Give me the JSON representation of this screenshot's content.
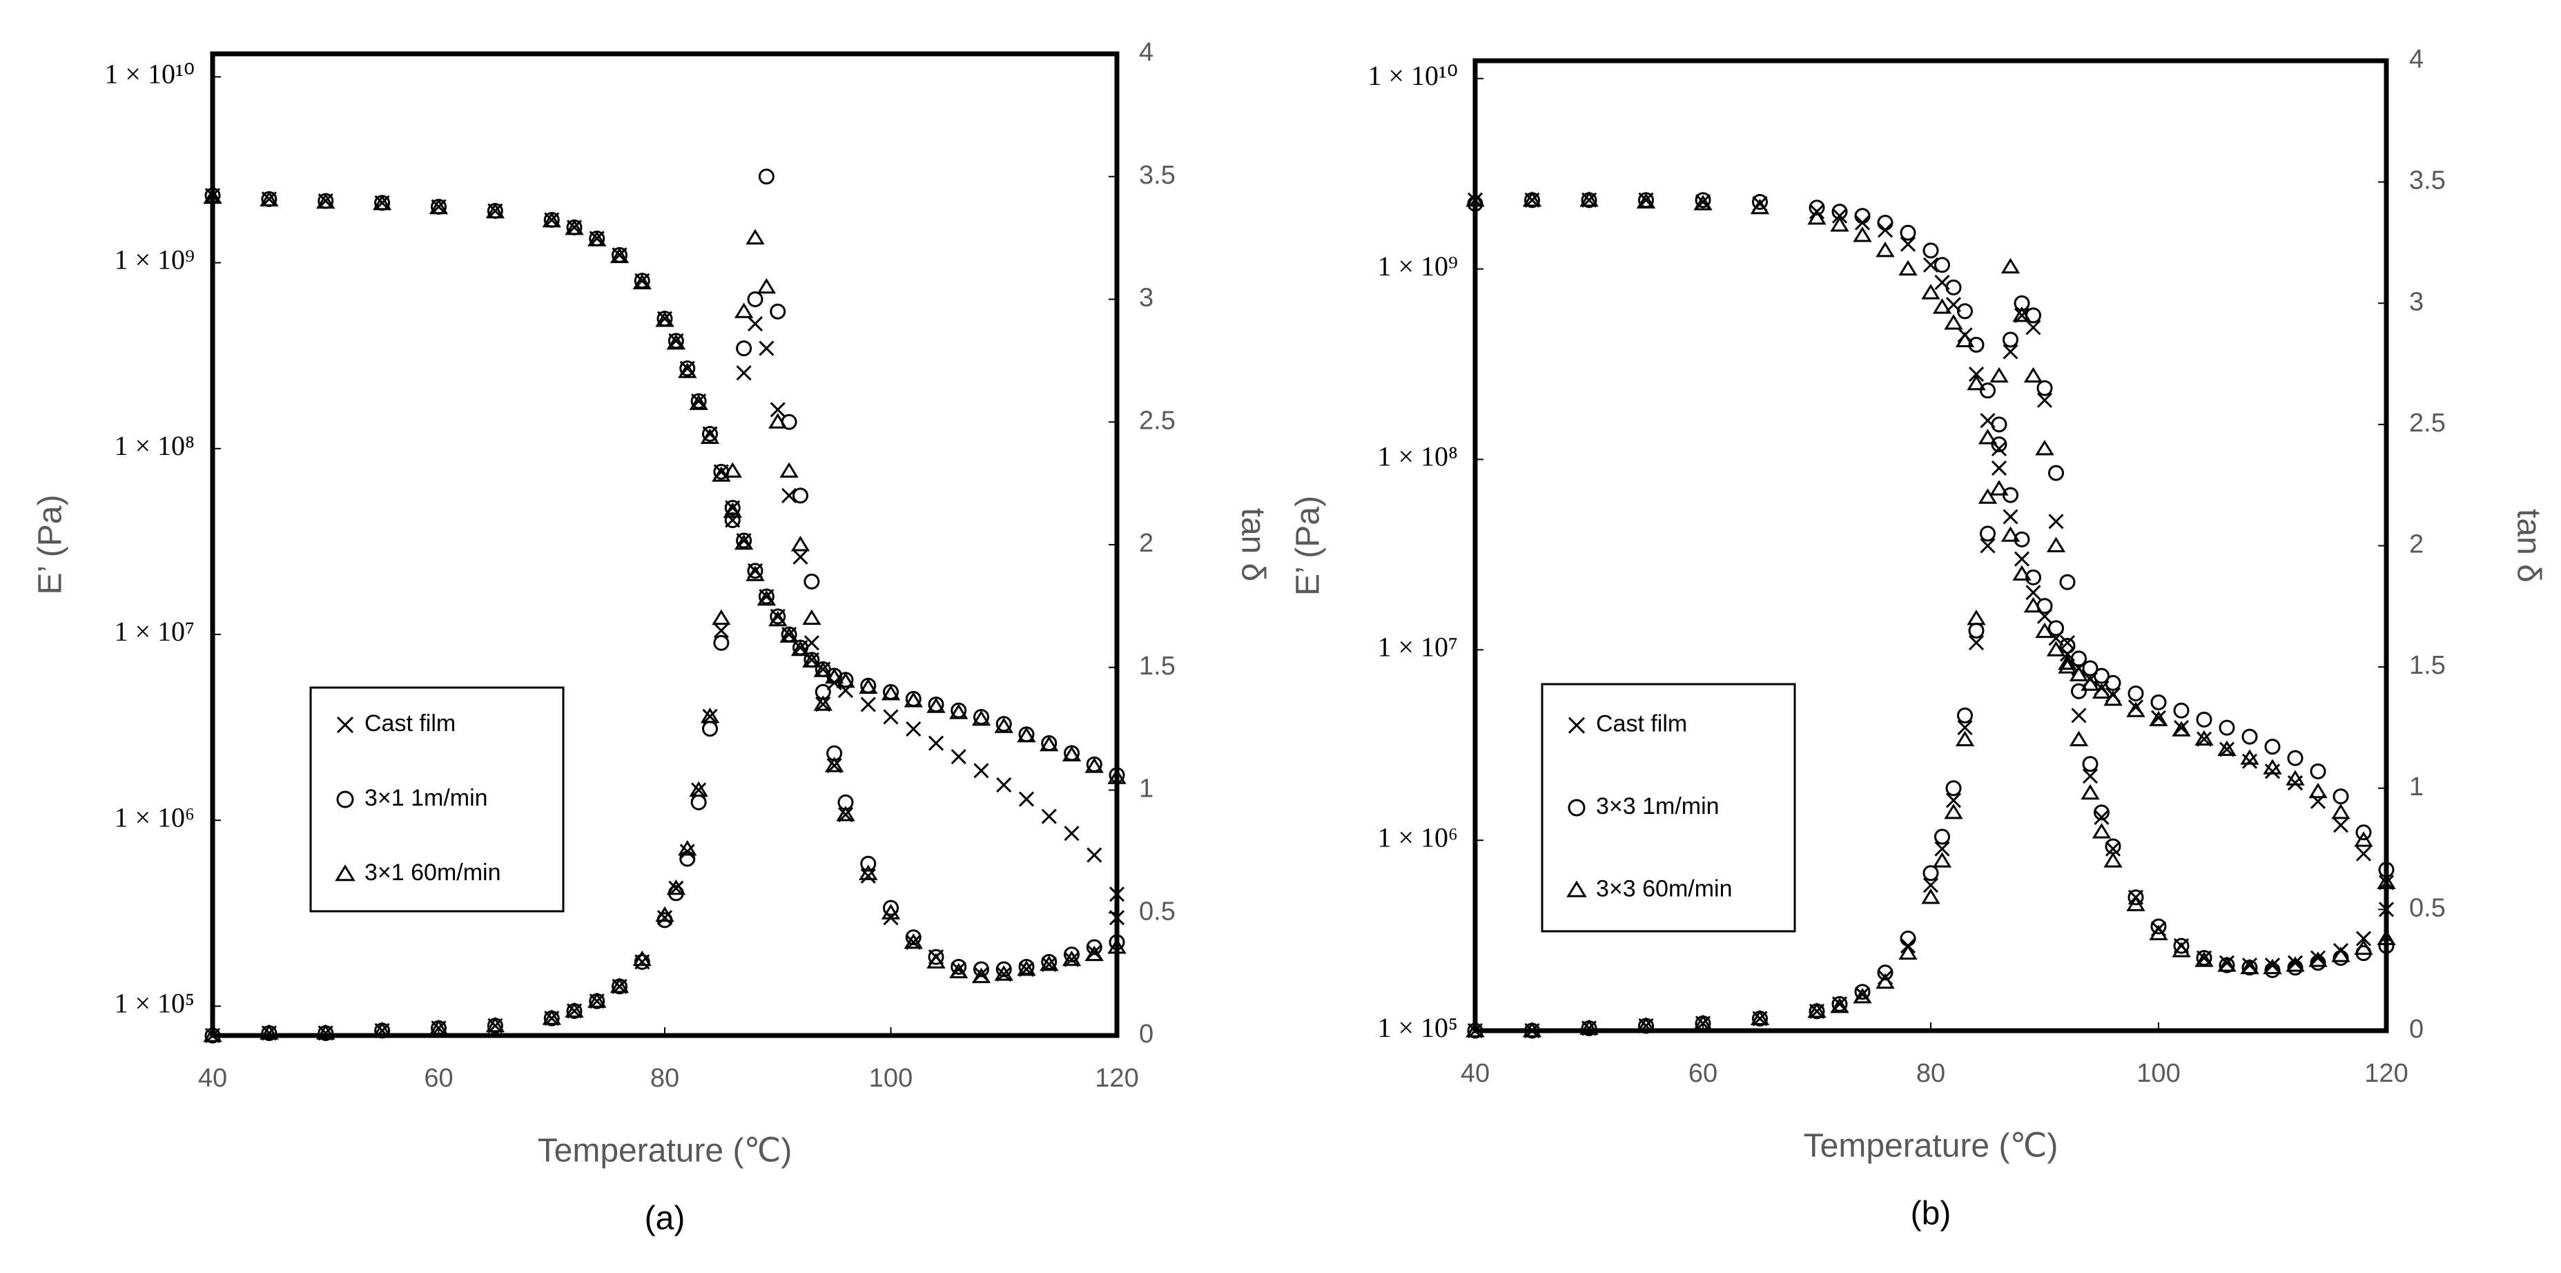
{
  "chart_data": [
    {
      "type": "scatter",
      "subtitle": "(a)",
      "x_label": "Temperature (℃)",
      "y_label": "E’ (Pa)",
      "y2_label": "tan δ",
      "log_y": true,
      "ylim": [
        69500,
        13300000000
      ],
      "y2lim": [
        0,
        4
      ],
      "xlim": [
        40,
        120
      ],
      "xticks": [
        40,
        60,
        80,
        100,
        120
      ],
      "yticks": [
        {
          "value": 100000,
          "label": "1 × 10⁵"
        },
        {
          "value": 1000000,
          "label": "1 × 10⁶"
        },
        {
          "value": 10000000,
          "label": "1 × 10⁷"
        },
        {
          "value": 100000000,
          "label": "1 × 10⁸"
        },
        {
          "value": 1000000000,
          "label": "1 × 10⁹"
        },
        {
          "value": 10000000000,
          "label": "1 × 10¹⁰"
        }
      ],
      "y2ticks": [
        0,
        0.5,
        1,
        1.5,
        2,
        2.5,
        3,
        3.5,
        4
      ],
      "x": [
        40,
        45,
        50,
        55,
        60,
        65,
        70,
        72,
        74,
        76,
        78,
        80,
        81,
        82,
        83,
        84,
        85,
        86,
        87,
        88,
        89,
        90,
        91,
        92,
        93,
        94,
        95,
        96,
        98,
        100,
        102,
        104,
        106,
        108,
        110,
        112,
        114,
        116,
        118,
        120
      ],
      "series": [
        {
          "name": "Cast film",
          "marker": "x",
          "color": "#000000",
          "values": [
            2300000000,
            2200000000,
            2150000000,
            2100000000,
            2000000000,
            1900000000,
            1700000000,
            1550000000,
            1350000000,
            1100000000,
            800000000,
            500000000,
            380000000,
            270000000,
            180000000,
            120000000,
            75000000,
            48000000,
            32000000,
            22000000,
            16000000,
            12500000,
            10000000,
            8500000,
            7300000,
            6500000,
            5500000,
            5000000,
            4200000,
            3600000,
            3100000,
            2600000,
            2200000,
            1850000,
            1550000,
            1300000,
            1050000,
            850000,
            650000,
            400000
          ],
          "y2_values": [
            0.0,
            0.01,
            0.01,
            0.02,
            0.03,
            0.04,
            0.07,
            0.1,
            0.14,
            0.2,
            0.3,
            0.48,
            0.6,
            0.75,
            1.0,
            1.3,
            1.65,
            2.1,
            2.7,
            2.9,
            2.8,
            2.55,
            2.2,
            1.95,
            1.6,
            1.35,
            1.1,
            0.9,
            0.65,
            0.48,
            0.38,
            0.32,
            0.27,
            0.25,
            0.25,
            0.27,
            0.29,
            0.31,
            0.34,
            0.48
          ]
        },
        {
          "name": "3×1 1m/min",
          "marker": "circle",
          "color": "#000000",
          "values": [
            2300000000,
            2200000000,
            2150000000,
            2100000000,
            2000000000,
            1900000000,
            1700000000,
            1550000000,
            1350000000,
            1100000000,
            800000000,
            500000000,
            380000000,
            270000000,
            180000000,
            120000000,
            75000000,
            48000000,
            32000000,
            22000000,
            16000000,
            12500000,
            10000000,
            8500000,
            7300000,
            6500000,
            6000000,
            5700000,
            5300000,
            4900000,
            4500000,
            4200000,
            3900000,
            3600000,
            3300000,
            2900000,
            2600000,
            2300000,
            2000000,
            1750000
          ],
          "y2_values": [
            0.0,
            0.01,
            0.01,
            0.02,
            0.03,
            0.04,
            0.07,
            0.1,
            0.14,
            0.2,
            0.3,
            0.47,
            0.58,
            0.72,
            0.95,
            1.25,
            1.6,
            2.1,
            2.8,
            3.0,
            3.5,
            2.95,
            2.5,
            2.2,
            1.85,
            1.4,
            1.15,
            0.95,
            0.7,
            0.52,
            0.4,
            0.32,
            0.28,
            0.27,
            0.27,
            0.28,
            0.3,
            0.33,
            0.36,
            0.38
          ]
        },
        {
          "name": "3×1 60m/min",
          "marker": "triangle",
          "color": "#000000",
          "values": [
            2250000000,
            2180000000,
            2120000000,
            2080000000,
            1980000000,
            1880000000,
            1680000000,
            1530000000,
            1330000000,
            1080000000,
            780000000,
            490000000,
            370000000,
            260000000,
            175000000,
            115000000,
            72000000,
            46000000,
            31000000,
            21000000,
            15500000,
            12000000,
            9800000,
            8300000,
            7200000,
            6400000,
            5900000,
            5600000,
            5200000,
            4800000,
            4400000,
            4100000,
            3800000,
            3500000,
            3200000,
            2850000,
            2550000,
            2250000,
            1950000,
            1700000
          ],
          "y2_values": [
            0.0,
            0.01,
            0.01,
            0.02,
            0.03,
            0.04,
            0.07,
            0.1,
            0.14,
            0.2,
            0.31,
            0.49,
            0.6,
            0.76,
            1.0,
            1.3,
            1.7,
            2.3,
            2.95,
            3.25,
            3.05,
            2.5,
            2.3,
            2.0,
            1.7,
            1.35,
            1.1,
            0.9,
            0.66,
            0.5,
            0.38,
            0.3,
            0.26,
            0.24,
            0.25,
            0.27,
            0.29,
            0.31,
            0.33,
            0.36
          ]
        }
      ]
    },
    {
      "type": "scatter",
      "subtitle": "(b)",
      "x_label": "Temperature (℃)",
      "y_label": "E’ (Pa)",
      "y2_label": "tan δ",
      "log_y": true,
      "ylim": [
        100000,
        12400000000
      ],
      "y2lim": [
        0,
        4
      ],
      "xlim": [
        40,
        120
      ],
      "xticks": [
        40,
        60,
        80,
        100,
        120
      ],
      "yticks": [
        {
          "value": 100000,
          "label": "1 × 10⁵"
        },
        {
          "value": 1000000,
          "label": "1 × 10⁶"
        },
        {
          "value": 10000000,
          "label": "1 × 10⁷"
        },
        {
          "value": 100000000,
          "label": "1 × 10⁸"
        },
        {
          "value": 1000000000,
          "label": "1 × 10⁹"
        },
        {
          "value": 10000000000,
          "label": "1 × 10¹⁰"
        }
      ],
      "y2ticks": [
        0,
        0.5,
        1,
        1.5,
        2,
        2.5,
        3,
        3.5,
        4
      ],
      "x": [
        40,
        45,
        50,
        55,
        60,
        65,
        70,
        72,
        74,
        76,
        78,
        80,
        81,
        82,
        83,
        84,
        85,
        86,
        87,
        88,
        89,
        90,
        91,
        92,
        93,
        94,
        95,
        96,
        98,
        100,
        102,
        104,
        106,
        108,
        110,
        112,
        114,
        116,
        118,
        120
      ],
      "series": [
        {
          "name": "Cast film",
          "marker": "x",
          "color": "#000000",
          "values": [
            2300000000,
            2300000000,
            2300000000,
            2300000000,
            2250000000,
            2200000000,
            2000000000,
            1900000000,
            1750000000,
            1600000000,
            1350000000,
            1050000000,
            850000000,
            650000000,
            450000000,
            280000000,
            160000000,
            90000000,
            50000000,
            30000000,
            20000000,
            15000000,
            11500000,
            9500000,
            8000000,
            7000000,
            6300000,
            5800000,
            5000000,
            4400000,
            3900000,
            3400000,
            3000000,
            2600000,
            2300000,
            2000000,
            1600000,
            1200000,
            850000,
            600000
          ],
          "y2_values": [
            0.0,
            0.0,
            0.01,
            0.02,
            0.03,
            0.05,
            0.08,
            0.11,
            0.15,
            0.22,
            0.35,
            0.6,
            0.75,
            0.95,
            1.25,
            1.6,
            2.0,
            2.4,
            2.8,
            2.95,
            2.9,
            2.6,
            2.1,
            1.6,
            1.3,
            1.05,
            0.88,
            0.75,
            0.55,
            0.42,
            0.35,
            0.3,
            0.28,
            0.27,
            0.27,
            0.28,
            0.3,
            0.33,
            0.38,
            0.5
          ]
        },
        {
          "name": "3×3 1m/min",
          "marker": "circle",
          "color": "#000000",
          "values": [
            2200000000,
            2300000000,
            2300000000,
            2300000000,
            2300000000,
            2250000000,
            2100000000,
            2000000000,
            1900000000,
            1750000000,
            1550000000,
            1250000000,
            1050000000,
            800000000,
            600000000,
            400000000,
            230000000,
            120000000,
            65000000,
            38000000,
            24000000,
            17000000,
            13000000,
            10500000,
            9000000,
            8000000,
            7300000,
            6700000,
            5900000,
            5300000,
            4800000,
            4300000,
            3900000,
            3500000,
            3100000,
            2700000,
            2300000,
            1700000,
            1100000,
            700000
          ],
          "y2_values": [
            0.0,
            0.0,
            0.01,
            0.02,
            0.03,
            0.05,
            0.08,
            0.11,
            0.16,
            0.24,
            0.38,
            0.65,
            0.8,
            1.0,
            1.3,
            1.65,
            2.05,
            2.5,
            2.85,
            3.0,
            2.95,
            2.65,
            2.3,
            1.85,
            1.4,
            1.1,
            0.9,
            0.76,
            0.55,
            0.43,
            0.35,
            0.3,
            0.27,
            0.26,
            0.25,
            0.26,
            0.28,
            0.3,
            0.32,
            0.35
          ]
        },
        {
          "name": "3×3 60m/min",
          "marker": "triangle",
          "color": "#000000",
          "values": [
            2300000000,
            2300000000,
            2300000000,
            2250000000,
            2200000000,
            2100000000,
            1850000000,
            1700000000,
            1500000000,
            1250000000,
            1000000000,
            750000000,
            630000000,
            520000000,
            420000000,
            250000000,
            130000000,
            70000000,
            40000000,
            25000000,
            17000000,
            12500000,
            10000000,
            8500000,
            7400000,
            6600000,
            6000000,
            5500000,
            4800000,
            4300000,
            3800000,
            3400000,
            3000000,
            2700000,
            2400000,
            2100000,
            1800000,
            1400000,
            1000000,
            600000
          ],
          "y2_values": [
            0.0,
            0.0,
            0.01,
            0.02,
            0.03,
            0.05,
            0.08,
            0.1,
            0.14,
            0.2,
            0.32,
            0.55,
            0.7,
            0.9,
            1.2,
            1.7,
            2.2,
            2.7,
            3.15,
            2.95,
            2.7,
            2.4,
            2.0,
            1.5,
            1.2,
            0.98,
            0.82,
            0.7,
            0.52,
            0.4,
            0.33,
            0.29,
            0.27,
            0.26,
            0.26,
            0.27,
            0.29,
            0.31,
            0.34,
            0.38
          ]
        }
      ]
    }
  ]
}
